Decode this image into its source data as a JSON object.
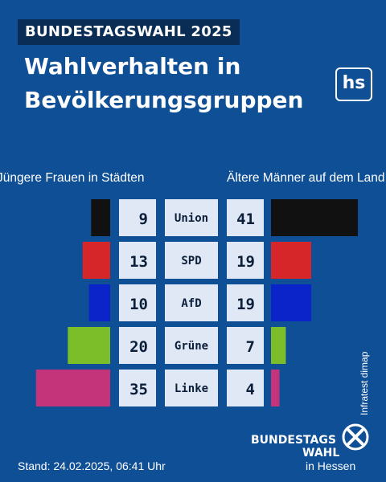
{
  "header": {
    "kicker": "BUNDESTAGSWAHL 2025",
    "title_line1": "Wahlverhalten in",
    "title_line2": "Bevölkerungsgruppen",
    "logo_text": "hs"
  },
  "chart_data": {
    "type": "bar",
    "layout": "butterfly",
    "categories": [
      "Union",
      "SPD",
      "AfD",
      "Grüne",
      "Linke"
    ],
    "series": [
      {
        "name": "Jüngere Frauen in Städten",
        "values": [
          9,
          13,
          10,
          20,
          35
        ]
      },
      {
        "name": "Ältere Männer auf dem Land",
        "values": [
          41,
          19,
          19,
          7,
          4
        ]
      }
    ],
    "colors": [
      "#111111",
      "#d7262a",
      "#0a24c9",
      "#7cbd2a",
      "#c4347a"
    ],
    "xlabel": "",
    "ylabel": "",
    "xlim": [
      0,
      41
    ]
  },
  "footer": {
    "source": "Infratest dimap",
    "stand": "Stand: 24.02.2025, 06:41 Uhr",
    "logo_line1": "BUNDESTAGS",
    "logo_line2": "WAHL",
    "logo_line3": "in Hessen"
  },
  "colors": {
    "background": "#0f4f96",
    "kicker_bg": "#0a2d55",
    "cell_bg": "#dfe8f4",
    "text_dark": "#0b1f3a"
  }
}
